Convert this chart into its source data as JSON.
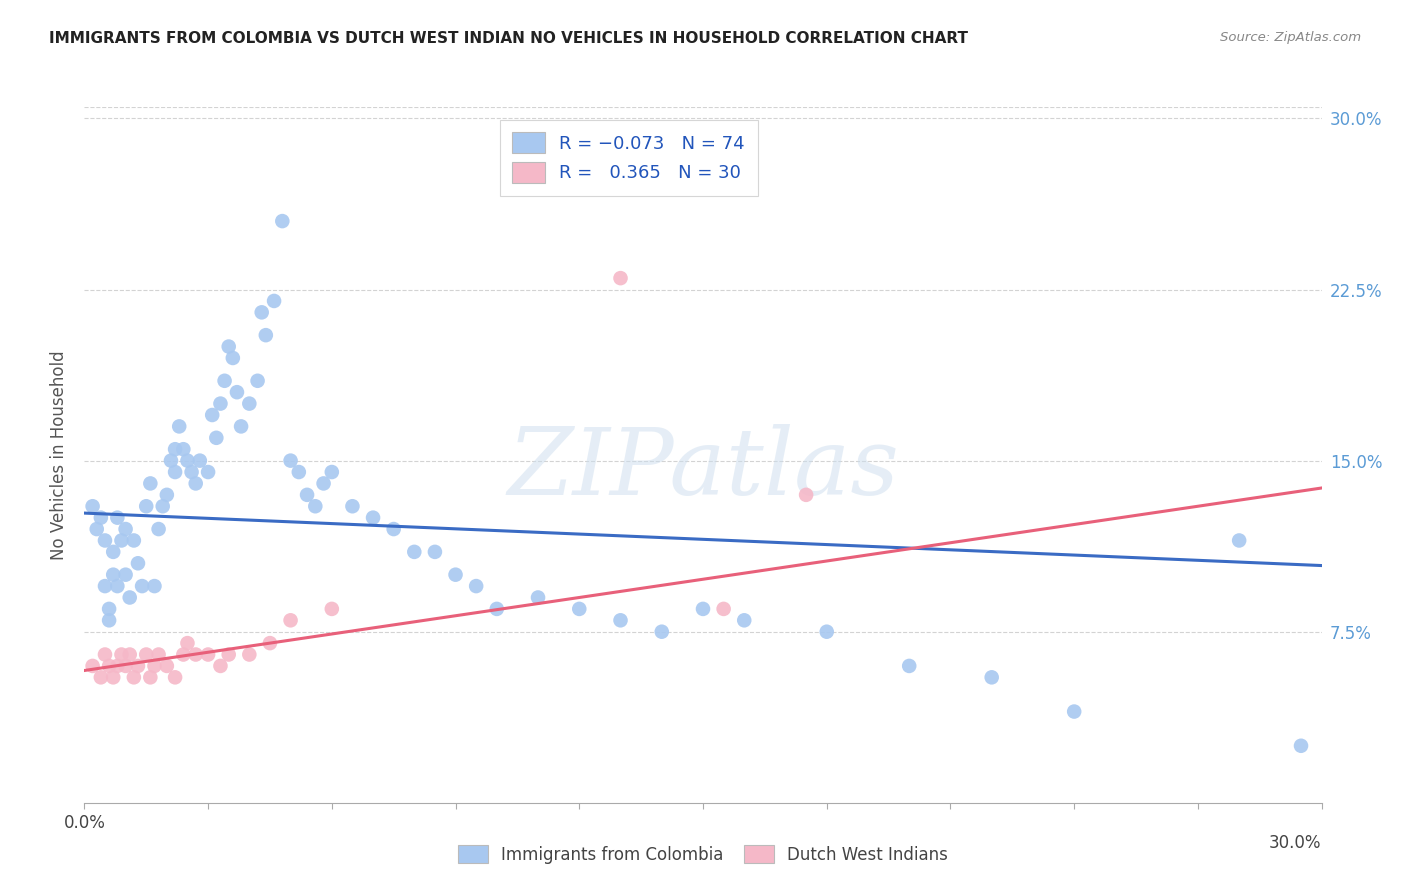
{
  "title": "IMMIGRANTS FROM COLOMBIA VS DUTCH WEST INDIAN NO VEHICLES IN HOUSEHOLD CORRELATION CHART",
  "source": "Source: ZipAtlas.com",
  "ylabel": "No Vehicles in Household",
  "yticks": [
    "7.5%",
    "15.0%",
    "22.5%",
    "30.0%"
  ],
  "ytick_vals": [
    0.075,
    0.15,
    0.225,
    0.3
  ],
  "xlim": [
    0.0,
    0.3
  ],
  "ylim": [
    0.0,
    0.305
  ],
  "color_blue": "#A8C8F0",
  "color_pink": "#F5B8C8",
  "color_blue_line": "#3A6BC4",
  "color_pink_line": "#E8607A",
  "watermark_text": "ZIPatlas",
  "colombia_x": [
    0.002,
    0.003,
    0.004,
    0.005,
    0.005,
    0.006,
    0.006,
    0.007,
    0.007,
    0.008,
    0.008,
    0.009,
    0.01,
    0.01,
    0.011,
    0.012,
    0.013,
    0.014,
    0.015,
    0.016,
    0.017,
    0.018,
    0.019,
    0.02,
    0.021,
    0.022,
    0.022,
    0.023,
    0.024,
    0.025,
    0.026,
    0.027,
    0.028,
    0.03,
    0.031,
    0.032,
    0.033,
    0.034,
    0.035,
    0.036,
    0.037,
    0.038,
    0.04,
    0.042,
    0.043,
    0.044,
    0.046,
    0.048,
    0.05,
    0.052,
    0.054,
    0.056,
    0.058,
    0.06,
    0.065,
    0.07,
    0.075,
    0.08,
    0.085,
    0.09,
    0.095,
    0.1,
    0.11,
    0.12,
    0.13,
    0.14,
    0.15,
    0.16,
    0.18,
    0.2,
    0.22,
    0.24,
    0.28,
    0.295
  ],
  "colombia_y": [
    0.13,
    0.12,
    0.125,
    0.115,
    0.095,
    0.085,
    0.08,
    0.11,
    0.1,
    0.125,
    0.095,
    0.115,
    0.12,
    0.1,
    0.09,
    0.115,
    0.105,
    0.095,
    0.13,
    0.14,
    0.095,
    0.12,
    0.13,
    0.135,
    0.15,
    0.145,
    0.155,
    0.165,
    0.155,
    0.15,
    0.145,
    0.14,
    0.15,
    0.145,
    0.17,
    0.16,
    0.175,
    0.185,
    0.2,
    0.195,
    0.18,
    0.165,
    0.175,
    0.185,
    0.215,
    0.205,
    0.22,
    0.255,
    0.15,
    0.145,
    0.135,
    0.13,
    0.14,
    0.145,
    0.13,
    0.125,
    0.12,
    0.11,
    0.11,
    0.1,
    0.095,
    0.085,
    0.09,
    0.085,
    0.08,
    0.075,
    0.085,
    0.08,
    0.075,
    0.06,
    0.055,
    0.04,
    0.115,
    0.025
  ],
  "dutch_x": [
    0.002,
    0.004,
    0.005,
    0.006,
    0.007,
    0.008,
    0.009,
    0.01,
    0.011,
    0.012,
    0.013,
    0.015,
    0.016,
    0.017,
    0.018,
    0.02,
    0.022,
    0.024,
    0.025,
    0.027,
    0.03,
    0.033,
    0.035,
    0.04,
    0.045,
    0.05,
    0.06,
    0.13,
    0.155,
    0.175
  ],
  "dutch_y": [
    0.06,
    0.055,
    0.065,
    0.06,
    0.055,
    0.06,
    0.065,
    0.06,
    0.065,
    0.055,
    0.06,
    0.065,
    0.055,
    0.06,
    0.065,
    0.06,
    0.055,
    0.065,
    0.07,
    0.065,
    0.065,
    0.06,
    0.065,
    0.065,
    0.07,
    0.08,
    0.085,
    0.23,
    0.085,
    0.135
  ],
  "col_trend_x": [
    0.0,
    0.3
  ],
  "col_trend_y": [
    0.127,
    0.104
  ],
  "dutch_trend_x": [
    0.0,
    0.3
  ],
  "dutch_trend_y": [
    0.058,
    0.138
  ]
}
